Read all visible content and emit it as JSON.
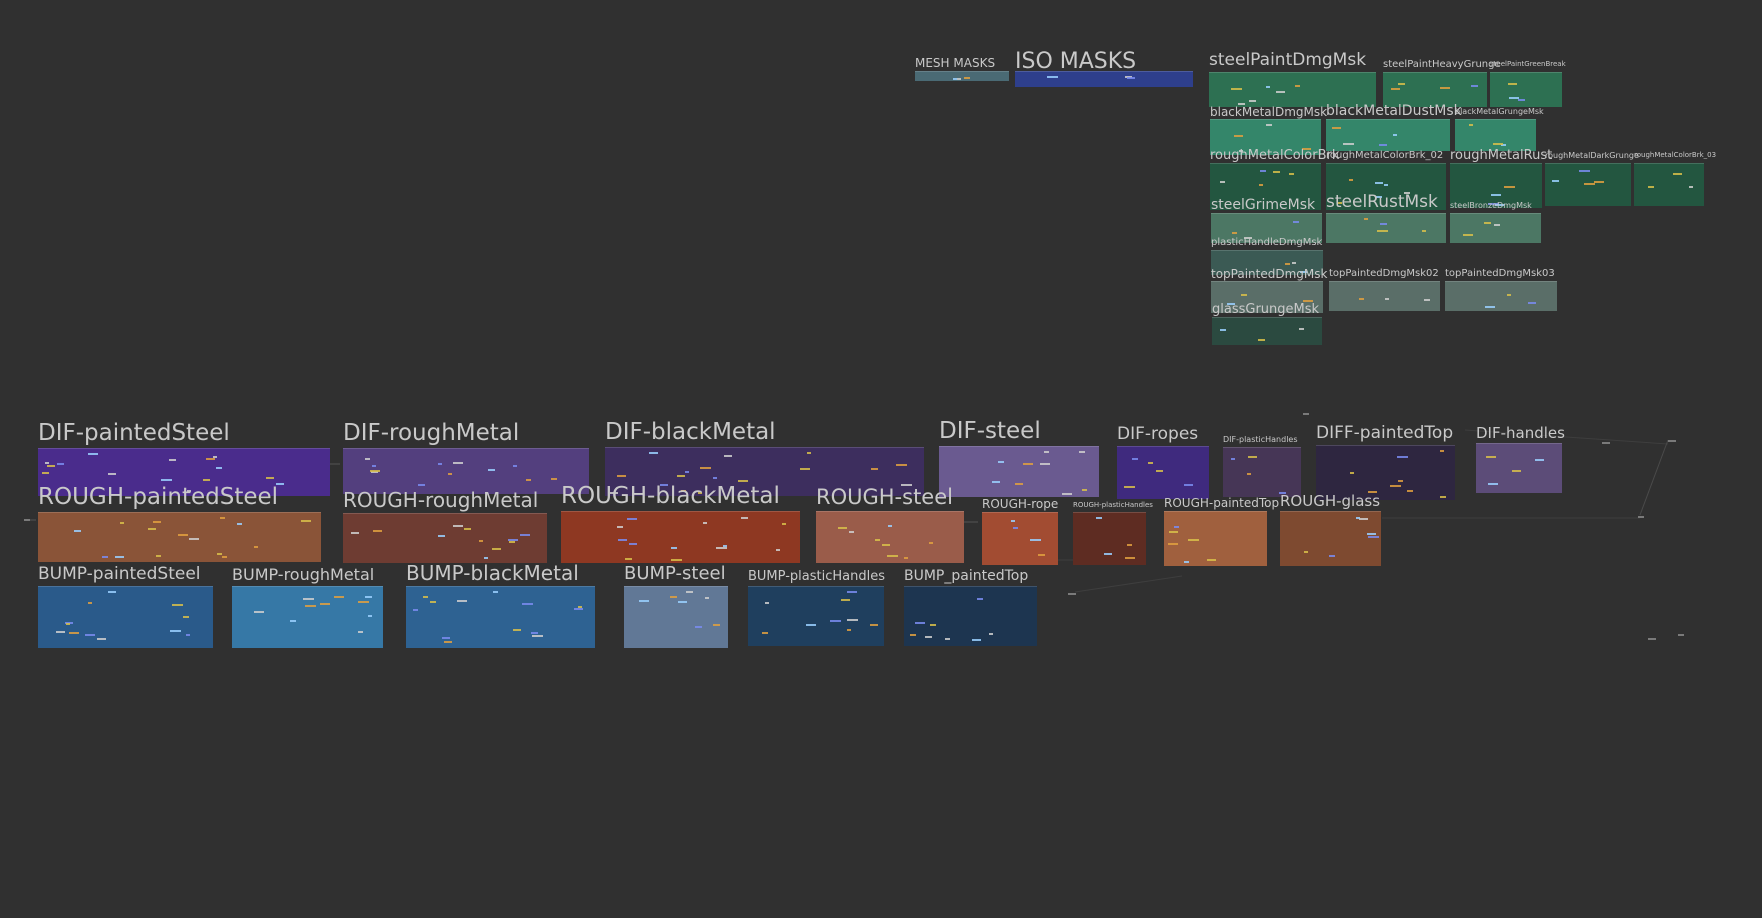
{
  "frames": [
    {
      "name": "mesh-masks",
      "label": "MESH MASKS",
      "color": "#4a6a74"
    },
    {
      "name": "iso-masks",
      "label": "ISO MASKS",
      "color": "#2e3f8c"
    },
    {
      "name": "steel-paint-dmg-msk",
      "label": "steelPaintDmgMsk",
      "color": "#2d7052"
    },
    {
      "name": "steel-paint-heavy-grunge",
      "label": "steelPaintHeavyGrunge",
      "color": "#2d7052"
    },
    {
      "name": "steel-paint-green-break",
      "label": "steelPaintGreenBreak",
      "color": "#2d7052"
    },
    {
      "name": "black-metal-dmg-msk",
      "label": "blackMetalDmgMsk",
      "color": "#34866a"
    },
    {
      "name": "black-metal-dust-msk",
      "label": "blackMetalDustMsk",
      "color": "#34866a"
    },
    {
      "name": "black-metal-grunge-msk",
      "label": "blackMetalGrungeMsk",
      "color": "#34866a"
    },
    {
      "name": "rough-metal-color-brk",
      "label": "roughMetalColorBrk",
      "color": "#235640"
    },
    {
      "name": "rough-metal-color-brk-02",
      "label": "roughMetalColorBrk_02",
      "color": "#235640"
    },
    {
      "name": "rough-metal-rust",
      "label": "roughMetalRust",
      "color": "#235640"
    },
    {
      "name": "rough-metal-dark-grunge",
      "label": "roughMetalDarkGrunge",
      "color": "#235640"
    },
    {
      "name": "rough-metal-color-brk-03",
      "label": "roughMetalColorBrk_03",
      "color": "#235640"
    },
    {
      "name": "steel-grime-msk",
      "label": "steelGrimeMsk",
      "color": "#4c7764"
    },
    {
      "name": "steel-rust-msk",
      "label": "steelRustMsk",
      "color": "#4c7764"
    },
    {
      "name": "steel-bronze-dmg-msk",
      "label": "steelBronzeDmgMsk",
      "color": "#4c7764"
    },
    {
      "name": "plastic-handle-dmg-msk",
      "label": "plasticHandleDmgMsk",
      "color": "#3b5a54"
    },
    {
      "name": "top-painted-dmg-msk",
      "label": "topPaintedDmgMsk",
      "color": "#5a6e68"
    },
    {
      "name": "top-painted-dmg-msk-02",
      "label": "topPaintedDmgMsk02",
      "color": "#5a6e68"
    },
    {
      "name": "top-painted-dmg-msk-03",
      "label": "topPaintedDmgMsk03",
      "color": "#5a6e68"
    },
    {
      "name": "glass-grunge-msk",
      "label": "glassGrungeMsk",
      "color": "#2b4a40"
    },
    {
      "name": "dif-painted-steel",
      "label": "DIF-paintedSteel",
      "color": "#4a2c8c"
    },
    {
      "name": "dif-rough-metal",
      "label": "DIF-roughMetal",
      "color": "#533f7e"
    },
    {
      "name": "dif-black-metal",
      "label": "DIF-blackMetal",
      "color": "#3d2e5e"
    },
    {
      "name": "dif-steel",
      "label": "DIF-steel",
      "color": "#6a5a90"
    },
    {
      "name": "dif-ropes",
      "label": "DIF-ropes",
      "color": "#3f2a7e"
    },
    {
      "name": "dif-plastic-handles",
      "label": "DIF-plasticHandles",
      "color": "#463656"
    },
    {
      "name": "diff-painted-top",
      "label": "DIFF-paintedTop",
      "color": "#2e2640"
    },
    {
      "name": "dif-handles",
      "label": "DIF-handles",
      "color": "#5c4c78"
    },
    {
      "name": "rough-painted-steel",
      "label": "ROUGH-paintedSteel",
      "color": "#8a5438"
    },
    {
      "name": "rough-rough-metal",
      "label": "ROUGH-roughMetal",
      "color": "#6e3c32"
    },
    {
      "name": "rough-black-metal",
      "label": "ROUGH-blackMetal",
      "color": "#8e3822"
    },
    {
      "name": "rough-steel",
      "label": "ROUGH-steel",
      "color": "#9a5c4a"
    },
    {
      "name": "rough-rope",
      "label": "ROUGH-rope",
      "color": "#a24c32"
    },
    {
      "name": "rough-plastic-handles",
      "label": "ROUGH-plasticHandles",
      "color": "#5e2c22"
    },
    {
      "name": "rough-painted-top",
      "label": "ROUGH-paintedTop",
      "color": "#a0603e"
    },
    {
      "name": "rough-glass",
      "label": "ROUGH-glass",
      "color": "#7e4a30"
    },
    {
      "name": "bump-painted-steel",
      "label": "BUMP-paintedSteel",
      "color": "#2a5a8a"
    },
    {
      "name": "bump-rough-metal",
      "label": "BUMP-roughMetal",
      "color": "#3678a6"
    },
    {
      "name": "bump-black-metal",
      "label": "BUMP-blackMetal",
      "color": "#2e6292"
    },
    {
      "name": "bump-steel",
      "label": "BUMP-steel",
      "color": "#617896"
    },
    {
      "name": "bump-plastic-handles",
      "label": "BUMP-plasticHandles",
      "color": "#1f3f5e"
    },
    {
      "name": "bump-painted-top",
      "label": "BUMP_paintedTop",
      "color": "#1d3550"
    }
  ]
}
